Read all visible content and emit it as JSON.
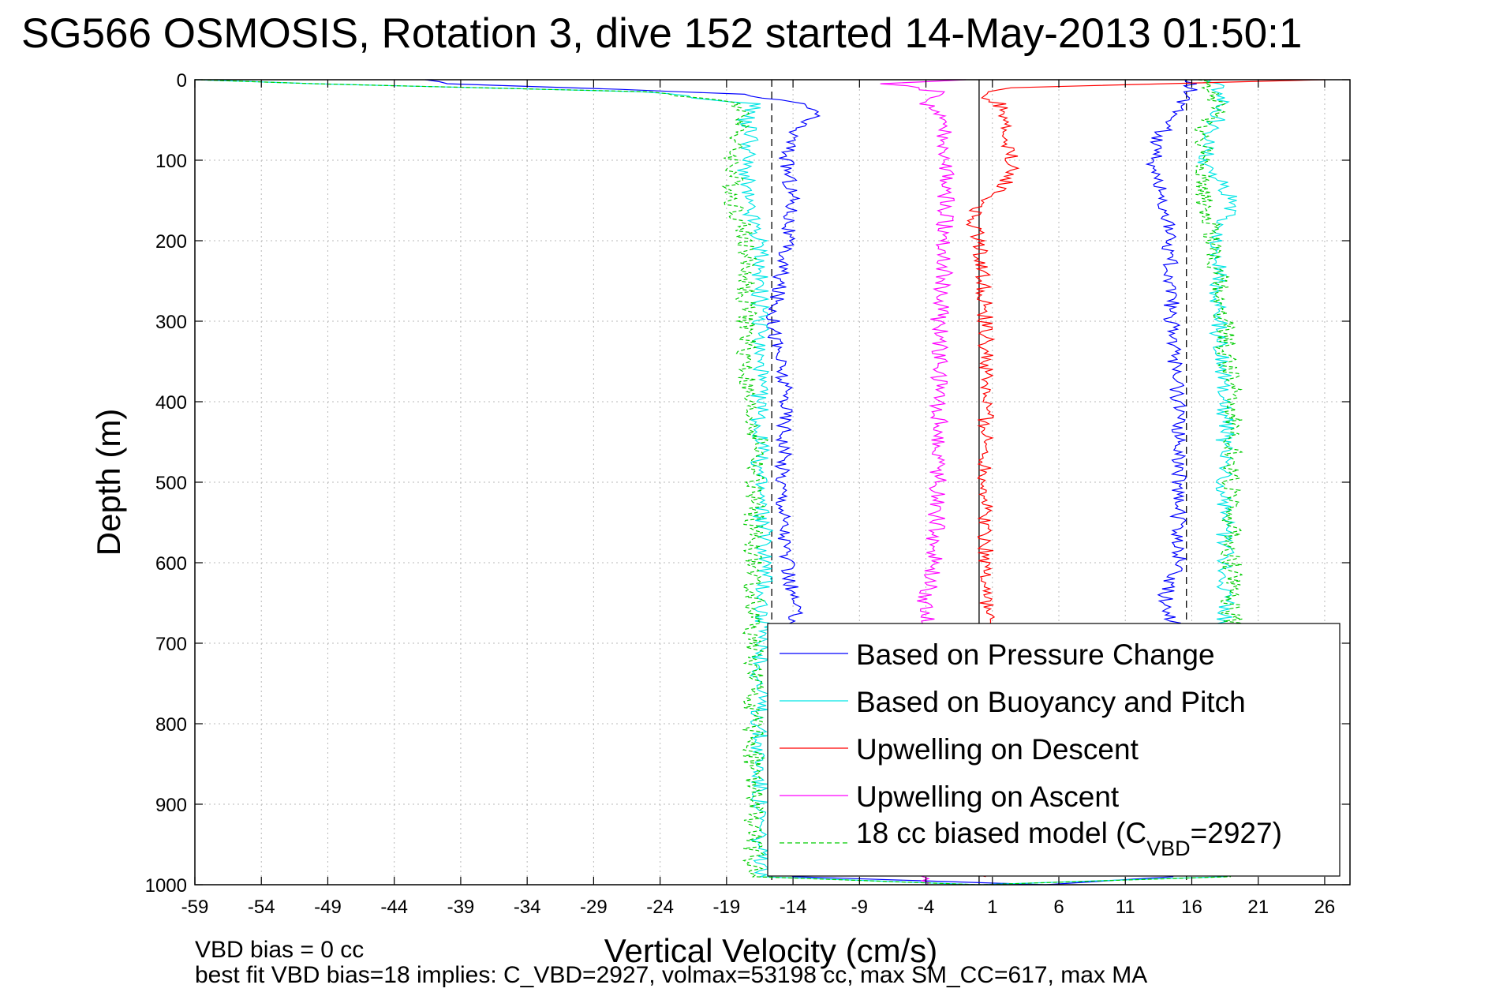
{
  "chart_data": {
    "type": "line",
    "title": "SG566 OSMOSIS, Rotation 3, dive 152 started 14-May-2013 01:50:1",
    "xlabel": "Vertical Velocity (cm/s)",
    "ylabel": "Depth (m)",
    "xlim": [
      -59,
      27
    ],
    "ylim": [
      0,
      1000
    ],
    "y_reversed": true,
    "xticks": [
      -59,
      -54,
      -49,
      -44,
      -39,
      -34,
      -29,
      -24,
      -19,
      -14,
      -9,
      -4,
      1,
      6,
      11,
      16,
      21,
      26
    ],
    "yticks": [
      0,
      100,
      200,
      300,
      400,
      500,
      600,
      700,
      800,
      900,
      1000
    ],
    "grid": true,
    "legend_position": "bottom-right",
    "reference_lines": [
      {
        "x": -15.6,
        "style": "dashed",
        "color": "#000000"
      },
      {
        "x": 0,
        "style": "solid",
        "color": "#000000"
      },
      {
        "x": 15.6,
        "style": "dashed",
        "color": "#000000"
      }
    ],
    "footer": [
      "VBD bias = 0 cc",
      "best fit VBD bias=18 implies: C_VBD=2927, volmax=53198 cc, max SM_CC=617, max MA"
    ],
    "series": [
      {
        "name": "Based on Pressure Change",
        "color": "#0000ff",
        "style": "solid",
        "depth": [
          0,
          5,
          12,
          18,
          30,
          40,
          55,
          70,
          100,
          150,
          200,
          300,
          400,
          500,
          600,
          700,
          800,
          900,
          990,
          1000,
          990,
          960,
          900,
          800,
          700,
          640,
          600,
          500,
          400,
          300,
          200,
          150,
          110,
          70,
          50,
          30,
          15,
          5,
          0
        ],
        "velocity": [
          -42,
          -40,
          -27,
          -18,
          -13.5,
          -12,
          -13.5,
          -14,
          -14.5,
          -14,
          -14.5,
          -15.5,
          -14.5,
          -14.8,
          -14.5,
          -13.5,
          -14,
          -14.5,
          -14,
          5,
          14.5,
          15,
          15,
          14.5,
          15,
          14,
          15,
          15,
          15,
          14.5,
          14.3,
          14,
          13,
          13.5,
          14.5,
          15,
          16,
          16,
          15.5
        ],
        "noise": 0.6
      },
      {
        "name": "Based on Buoyancy and Pitch",
        "color": "#00e5e5",
        "style": "solid",
        "depth": [
          0,
          5,
          15,
          30,
          50,
          70,
          100,
          150,
          200,
          300,
          400,
          500,
          600,
          700,
          800,
          900,
          990,
          1000,
          990,
          900,
          800,
          700,
          600,
          500,
          400,
          300,
          200,
          150,
          100,
          60,
          30,
          10,
          0
        ],
        "velocity": [
          -59,
          -50,
          -25,
          -17,
          -17.5,
          -17,
          -17.5,
          -17.5,
          -16.5,
          -16.5,
          -16.5,
          -16.5,
          -16,
          -16.5,
          -16.5,
          -16.5,
          -16.5,
          0,
          18.5,
          18.5,
          18.5,
          18.5,
          18.5,
          18.5,
          18.5,
          18,
          18,
          19,
          17,
          17.5,
          18.5,
          18,
          17.5
        ],
        "noise": 0.7
      },
      {
        "name": "Upwelling on Descent",
        "color": "#ff0000",
        "style": "solid",
        "depth": [
          0,
          10,
          20,
          30,
          50,
          70,
          100,
          130,
          150,
          170,
          200,
          300,
          400,
          500,
          600,
          700,
          800,
          900,
          990
        ],
        "velocity": [
          26,
          2,
          0,
          1.5,
          2,
          1.8,
          2.5,
          2,
          0.5,
          -0.5,
          0,
          0.5,
          0.5,
          0.5,
          0.5,
          0.8,
          0.5,
          0.5,
          0.5
        ],
        "noise": 0.6
      },
      {
        "name": "Upwelling on Ascent",
        "color": "#ff00ff",
        "style": "solid",
        "depth": [
          0,
          5,
          15,
          30,
          50,
          80,
          100,
          150,
          200,
          300,
          400,
          500,
          600,
          650,
          700,
          800,
          900,
          1000
        ],
        "velocity": [
          -1,
          -7,
          -3,
          -4,
          -3,
          -2.5,
          -2.5,
          -2.5,
          -2.5,
          -3,
          -3,
          -3,
          -3.5,
          -4,
          -4,
          -4,
          -4,
          -4
        ],
        "noise": 0.7
      },
      {
        "name": "18 cc biased model (C_VBD=2927)",
        "color": "#00cc00",
        "style": "dashed",
        "depth": [
          0,
          5,
          15,
          30,
          50,
          80,
          100,
          150,
          200,
          300,
          400,
          450,
          500,
          600,
          700,
          800,
          900,
          990,
          1000,
          990,
          900,
          800,
          700,
          600,
          500,
          400,
          300,
          200,
          150,
          100,
          60,
          30,
          10,
          0
        ],
        "velocity": [
          -59,
          -50,
          -25,
          -18,
          -17.5,
          -18.5,
          -18.5,
          -18.5,
          -17.5,
          -17.5,
          -17.5,
          -16.5,
          -17,
          -17,
          -17,
          -17,
          -17,
          -17,
          0,
          19,
          19,
          19,
          19,
          19,
          19,
          19,
          18.5,
          17.5,
          17,
          17,
          17,
          18,
          17,
          16.5
        ],
        "noise": 0.8
      }
    ]
  },
  "legend": {
    "items": [
      {
        "label": "Based on Pressure Change",
        "sub": "",
        "rest": ""
      },
      {
        "label": "Based on Buoyancy and Pitch",
        "sub": "",
        "rest": ""
      },
      {
        "label": "Upwelling on Descent",
        "sub": "",
        "rest": ""
      },
      {
        "label": "Upwelling on Ascent",
        "sub": "",
        "rest": ""
      },
      {
        "label": "18 cc biased model (C",
        "sub": "VBD",
        "rest": "=2927)"
      }
    ]
  }
}
